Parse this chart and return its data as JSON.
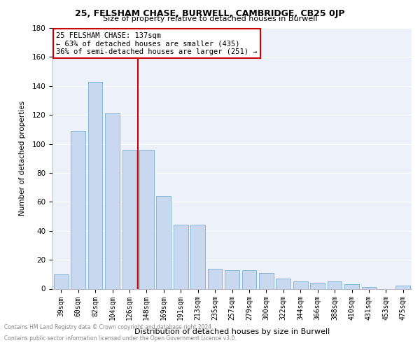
{
  "title1": "25, FELSHAM CHASE, BURWELL, CAMBRIDGE, CB25 0JP",
  "title2": "Size of property relative to detached houses in Burwell",
  "xlabel": "Distribution of detached houses by size in Burwell",
  "ylabel": "Number of detached properties",
  "footer1": "Contains HM Land Registry data © Crown copyright and database right 2024.",
  "footer2": "Contains public sector information licensed under the Open Government Licence v3.0.",
  "categories": [
    "39sqm",
    "60sqm",
    "82sqm",
    "104sqm",
    "126sqm",
    "148sqm",
    "169sqm",
    "191sqm",
    "213sqm",
    "235sqm",
    "257sqm",
    "279sqm",
    "300sqm",
    "322sqm",
    "344sqm",
    "366sqm",
    "388sqm",
    "410sqm",
    "431sqm",
    "453sqm",
    "475sqm"
  ],
  "values": [
    10,
    109,
    143,
    121,
    96,
    96,
    64,
    44,
    44,
    14,
    13,
    13,
    11,
    7,
    5,
    4,
    5,
    3,
    1,
    0,
    2
  ],
  "bar_color": "#c8d8ee",
  "bar_edge_color": "#7aafd4",
  "property_label": "25 FELSHAM CHASE: 137sqm",
  "annotation_line1": "← 63% of detached houses are smaller (435)",
  "annotation_line2": "36% of semi-detached houses are larger (251) →",
  "vline_color": "#cc0000",
  "annotation_box_color": "#cc0000",
  "ylim": [
    0,
    180
  ],
  "yticks": [
    0,
    20,
    40,
    60,
    80,
    100,
    120,
    140,
    160,
    180
  ],
  "background_color": "#edf2fa",
  "grid_color": "#ffffff"
}
